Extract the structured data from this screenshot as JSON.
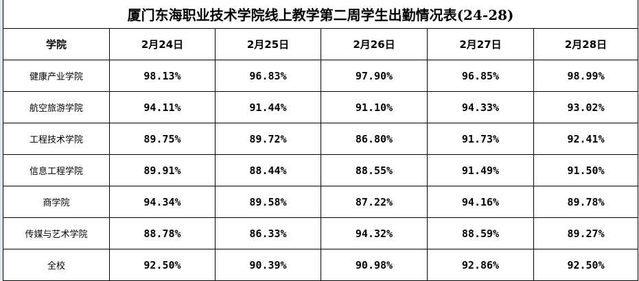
{
  "title": "厦门东海职业技术学院线上教学第二周学生出勤情况表(24-28)",
  "columns": [
    "学院",
    "2月24日",
    "2月25日",
    "2月26日",
    "2月27日",
    "2月28日"
  ],
  "rows": [
    {
      "name": "健康产业学院",
      "values": [
        "98.13%",
        "96.83%",
        "97.90%",
        "96.85%",
        "98.99%"
      ]
    },
    {
      "name": "航空旅游学院",
      "values": [
        "94.11%",
        "91.44%",
        "91.10%",
        "94.33%",
        "93.02%"
      ]
    },
    {
      "name": "工程技术学院",
      "values": [
        "89.75%",
        "89.72%",
        "86.80%",
        "91.73%",
        "92.41%"
      ]
    },
    {
      "name": "信息工程学院",
      "values": [
        "89.91%",
        "88.44%",
        "88.55%",
        "91.49%",
        "91.50%"
      ]
    },
    {
      "name": "商学院",
      "values": [
        "94.34%",
        "89.58%",
        "87.22%",
        "94.16%",
        "89.78%"
      ]
    },
    {
      "name": "传媒与艺术学院",
      "values": [
        "88.78%",
        "86.33%",
        "94.32%",
        "88.59%",
        "89.27%"
      ]
    },
    {
      "name": "全校",
      "values": [
        "92.50%",
        "90.39%",
        "90.98%",
        "92.86%",
        "92.50%"
      ]
    }
  ]
}
